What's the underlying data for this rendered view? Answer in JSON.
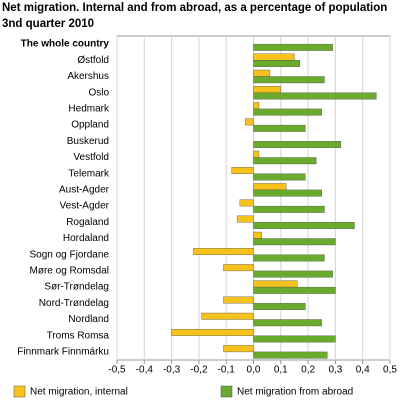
{
  "chart_data": {
    "type": "hbar",
    "title": "Net migration. Internal and from abroad, as a percentage of population",
    "subtitle": "3nd quarter 2010",
    "categories": [
      "The whole country",
      "Østfold",
      "Akershus",
      "Oslo",
      "Hedmark",
      "Oppland",
      "Buskerud",
      "Vestfold",
      "Telemark",
      "Aust-Agder",
      "Vest-Agder",
      "Rogaland",
      "Hordaland",
      "Sogn og Fjordane",
      "Møre og Romsdal",
      "Sør-Trøndelag",
      "Nord-Trøndelag",
      "Nordland",
      "Troms Romsa",
      "Finnmark Finnmárku"
    ],
    "series": [
      {
        "name": "Net migration, internal",
        "color": "#f7c21b",
        "values": [
          0,
          0.15,
          0.06,
          0.1,
          0.02,
          -0.03,
          0,
          0.02,
          -0.08,
          0.12,
          -0.05,
          -0.06,
          0.03,
          -0.22,
          -0.11,
          0.16,
          -0.11,
          -0.19,
          -0.3,
          -0.11
        ]
      },
      {
        "name": "Net migration from abroad",
        "color": "#6aaa2c",
        "values": [
          0.29,
          0.17,
          0.26,
          0.45,
          0.25,
          0.19,
          0.32,
          0.23,
          0.19,
          0.25,
          0.26,
          0.37,
          0.3,
          0.26,
          0.29,
          0.3,
          0.19,
          0.25,
          0.3,
          0.27
        ]
      }
    ],
    "xlim": [
      -0.5,
      0.5
    ],
    "xticks": [
      {
        "value": -0.5,
        "label": "-0,5"
      },
      {
        "value": -0.4,
        "label": "-0,4"
      },
      {
        "value": -0.3,
        "label": "-0,3"
      },
      {
        "value": -0.2,
        "label": "-0,2"
      },
      {
        "value": -0.1,
        "label": "-0,1"
      },
      {
        "value": 0,
        "label": "0,0"
      },
      {
        "value": 0.1,
        "label": "0,1"
      },
      {
        "value": 0.2,
        "label": "0,2"
      },
      {
        "value": 0.3,
        "label": "0,3"
      },
      {
        "value": 0.4,
        "label": "0,4"
      },
      {
        "value": 0.5,
        "label": "0,5"
      }
    ],
    "grid": true
  }
}
